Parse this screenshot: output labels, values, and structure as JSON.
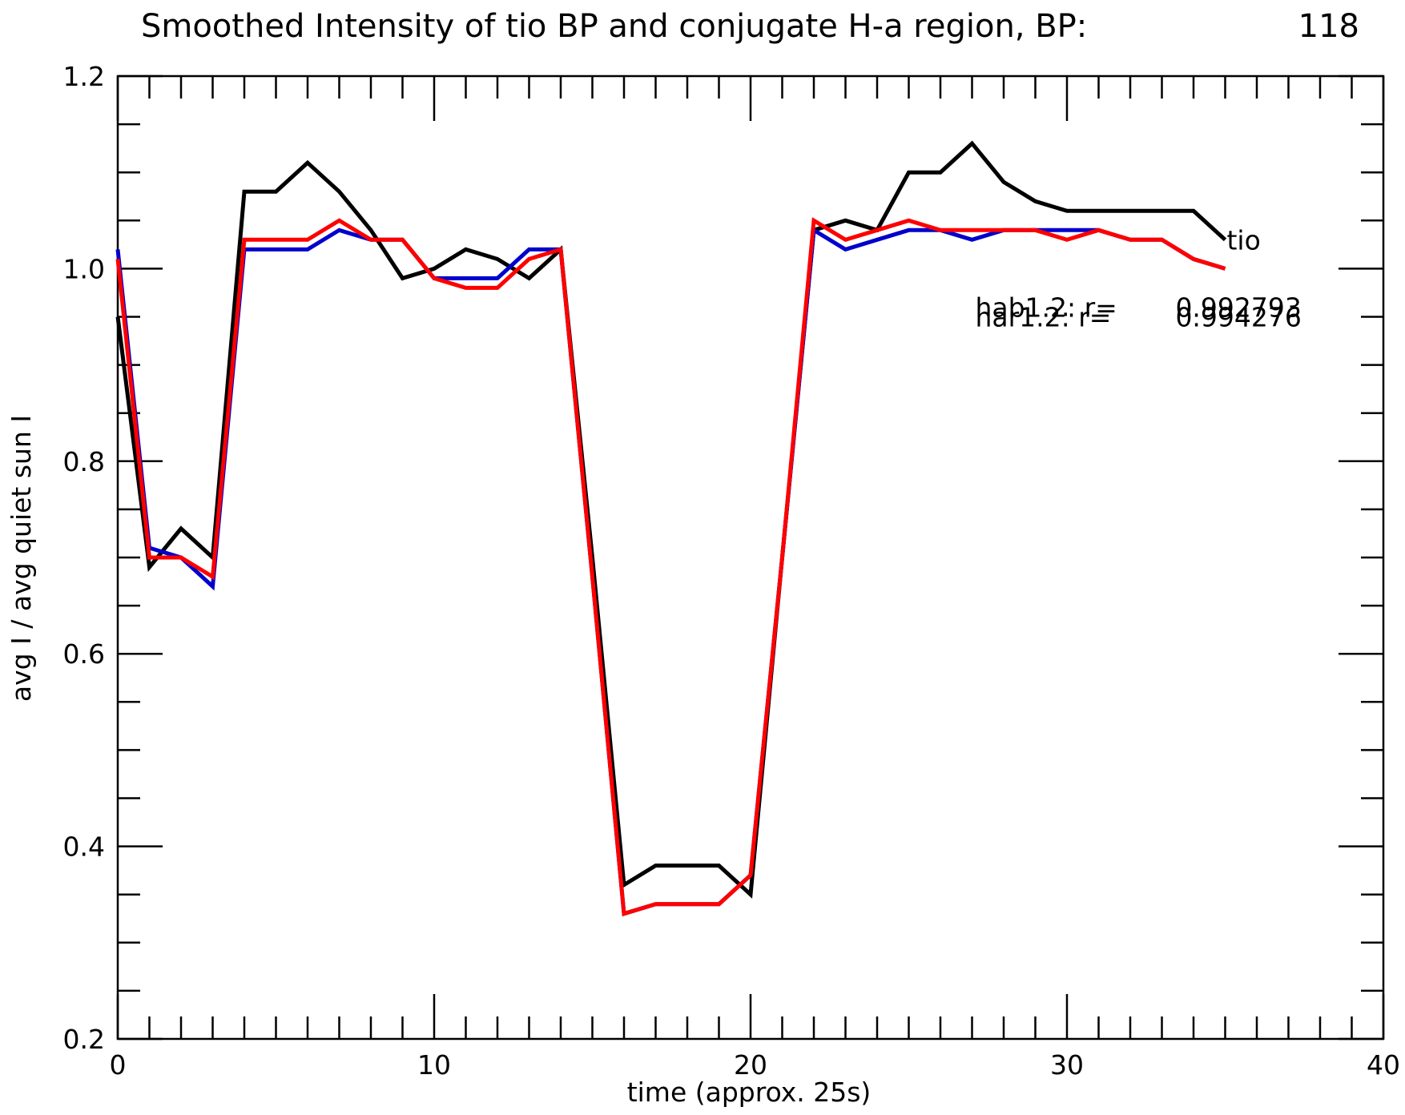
{
  "chart_data": {
    "type": "line",
    "title": "Smoothed Intensity of tio BP and conjugate H-a region, BP:",
    "title_value": "118",
    "xlabel": "time (approx. 25s)",
    "ylabel": "avg I / avg quiet sun I",
    "xlim": [
      0,
      40
    ],
    "ylim": [
      0.2,
      1.2
    ],
    "x_ticks": [
      "0",
      "10",
      "20",
      "30",
      "40"
    ],
    "y_ticks": [
      "0.2",
      "0.4",
      "0.6",
      "0.8",
      "1.0",
      "1.2"
    ],
    "grid": false,
    "x": [
      0,
      1,
      2,
      3,
      4,
      5,
      6,
      7,
      8,
      9,
      10,
      11,
      12,
      13,
      14,
      15,
      16,
      17,
      18,
      19,
      20,
      21,
      22,
      23,
      24,
      25,
      26,
      27,
      28,
      29,
      30,
      31,
      32,
      33,
      34,
      35
    ],
    "series": [
      {
        "name": "tio",
        "color": "#000000",
        "values": [
          0.95,
          0.69,
          0.73,
          0.7,
          1.08,
          1.08,
          1.11,
          1.08,
          1.04,
          0.99,
          1.0,
          1.02,
          1.01,
          0.99,
          1.02,
          0.7,
          0.36,
          0.38,
          0.38,
          0.38,
          0.35,
          0.7,
          1.04,
          1.05,
          1.04,
          1.1,
          1.1,
          1.13,
          1.09,
          1.07,
          1.06,
          1.06,
          1.06,
          1.06,
          1.06,
          1.03
        ]
      },
      {
        "name": "hab1.2",
        "color": "#0000cc",
        "values": [
          1.02,
          0.71,
          0.7,
          0.67,
          1.02,
          1.02,
          1.02,
          1.04,
          1.03,
          1.03,
          0.99,
          0.99,
          0.99,
          1.02,
          1.02,
          0.68,
          0.33,
          0.34,
          0.34,
          0.34,
          0.37,
          0.7,
          1.04,
          1.02,
          1.03,
          1.04,
          1.04,
          1.03,
          1.04,
          1.04,
          1.04,
          1.04,
          1.03,
          1.03,
          1.01,
          1.0
        ]
      },
      {
        "name": "har1.2",
        "color": "#ff0000",
        "values": [
          1.01,
          0.7,
          0.7,
          0.68,
          1.03,
          1.03,
          1.03,
          1.05,
          1.03,
          1.03,
          0.99,
          0.98,
          0.98,
          1.01,
          1.02,
          0.68,
          0.33,
          0.34,
          0.34,
          0.34,
          0.37,
          0.7,
          1.05,
          1.03,
          1.04,
          1.05,
          1.04,
          1.04,
          1.04,
          1.04,
          1.03,
          1.04,
          1.03,
          1.03,
          1.01,
          1.0
        ]
      }
    ],
    "annotations": [
      {
        "text": "tio",
        "x": 35.05,
        "y": 1.03
      },
      {
        "text": "hab1.2: r=",
        "value": "0.992793",
        "x": 27.1,
        "y": 0.96
      },
      {
        "text": "har1.2: r=",
        "value": "0.994276",
        "x": 27.1,
        "y": 0.95
      }
    ]
  }
}
